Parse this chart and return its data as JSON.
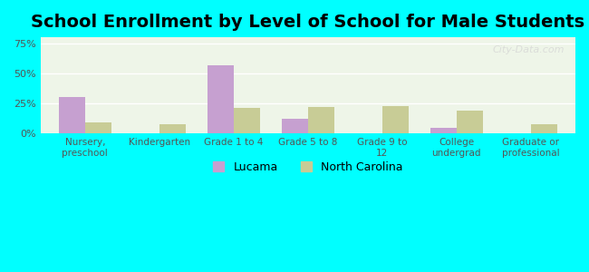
{
  "title": "School Enrollment by Level of School for Male Students",
  "categories": [
    "Nursery,\npreschool",
    "Kindergarten",
    "Grade 1 to 4",
    "Grade 5 to 8",
    "Grade 9 to\n12",
    "College\nundergrad",
    "Graduate or\nprofessional"
  ],
  "lucama": [
    30,
    0,
    57,
    12,
    0,
    5,
    0
  ],
  "north_carolina": [
    9,
    8,
    21,
    22,
    23,
    19,
    8
  ],
  "lucama_color": "#c6a0d0",
  "nc_color": "#c8cc96",
  "background_color": "#00ffff",
  "title_fontsize": 14,
  "legend_labels": [
    "Lucama",
    "North Carolina"
  ],
  "yticks": [
    0,
    25,
    50,
    75
  ],
  "ylim": [
    0,
    80
  ],
  "bar_width": 0.35
}
